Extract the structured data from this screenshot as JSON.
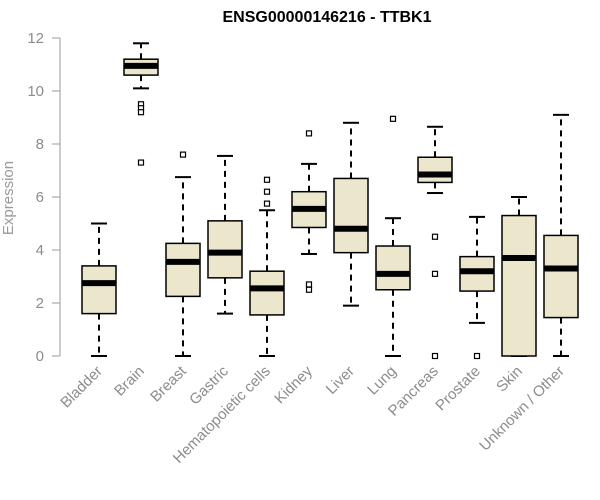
{
  "chart_data": {
    "type": "boxplot",
    "title": "ENSG00000146216 - TTBK1",
    "xlabel": "",
    "ylabel": "Expression",
    "ylim": [
      0,
      12
    ],
    "yticks": [
      0,
      2,
      4,
      6,
      8,
      10,
      12
    ],
    "box_fill": "#ece6cc",
    "box_stroke": "#000000",
    "categories": [
      "Bladder",
      "Brain",
      "Breast",
      "Gastric",
      "Hematopoietic cells",
      "Kidney",
      "Liver",
      "Lung",
      "Pancreas",
      "Prostate",
      "Skin",
      "Unknown / Other"
    ],
    "boxes": [
      {
        "name": "Bladder",
        "whisker_low": 0.0,
        "q1": 1.6,
        "median": 2.75,
        "q3": 3.4,
        "whisker_high": 5.0,
        "outliers": []
      },
      {
        "name": "Brain",
        "whisker_low": 10.1,
        "q1": 10.6,
        "median": 10.95,
        "q3": 11.2,
        "whisker_high": 11.8,
        "outliers": [
          9.5,
          9.35,
          9.2,
          7.3
        ]
      },
      {
        "name": "Breast",
        "whisker_low": 0.0,
        "q1": 2.25,
        "median": 3.55,
        "q3": 4.25,
        "whisker_high": 6.75,
        "outliers": [
          7.6
        ]
      },
      {
        "name": "Gastric",
        "whisker_low": 1.6,
        "q1": 2.95,
        "median": 3.9,
        "q3": 5.1,
        "whisker_high": 7.55,
        "outliers": []
      },
      {
        "name": "Hematopoietic cells",
        "whisker_low": 0.0,
        "q1": 1.55,
        "median": 2.55,
        "q3": 3.2,
        "whisker_high": 5.5,
        "outliers": [
          6.65,
          6.2,
          5.75
        ]
      },
      {
        "name": "Kidney",
        "whisker_low": 3.85,
        "q1": 4.85,
        "median": 5.55,
        "q3": 6.2,
        "whisker_high": 7.25,
        "outliers": [
          8.4,
          2.7,
          2.5
        ]
      },
      {
        "name": "Liver",
        "whisker_low": 1.9,
        "q1": 3.9,
        "median": 4.8,
        "q3": 6.7,
        "whisker_high": 8.8,
        "outliers": []
      },
      {
        "name": "Lung",
        "whisker_low": 0.0,
        "q1": 2.5,
        "median": 3.1,
        "q3": 4.15,
        "whisker_high": 5.2,
        "outliers": [
          8.95
        ]
      },
      {
        "name": "Pancreas",
        "whisker_low": 6.15,
        "q1": 6.55,
        "median": 6.85,
        "q3": 7.5,
        "whisker_high": 8.65,
        "outliers": [
          4.5,
          3.1,
          0.0
        ]
      },
      {
        "name": "Prostate",
        "whisker_low": 1.25,
        "q1": 2.45,
        "median": 3.2,
        "q3": 3.75,
        "whisker_high": 5.25,
        "outliers": [
          0.0
        ]
      },
      {
        "name": "Skin",
        "whisker_low": 0.0,
        "q1": 0.0,
        "median": 3.7,
        "q3": 5.3,
        "whisker_high": 6.0,
        "outliers": []
      },
      {
        "name": "Unknown / Other",
        "whisker_low": 0.0,
        "q1": 1.45,
        "median": 3.3,
        "q3": 4.55,
        "whisker_high": 9.1,
        "outliers": []
      }
    ]
  }
}
